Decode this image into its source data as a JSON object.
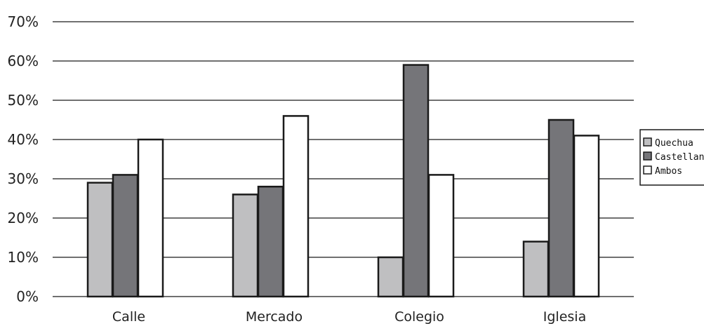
{
  "chart_data": {
    "type": "bar",
    "title": "",
    "xlabel": "",
    "ylabel": "",
    "categories": [
      "Calle",
      "Mercado",
      "Colegio",
      "Iglesia"
    ],
    "series": [
      {
        "name": "Quechua",
        "values": [
          29,
          26,
          10,
          14
        ],
        "color": "#bfbfc1"
      },
      {
        "name": "Castellano",
        "values": [
          31,
          28,
          59,
          45
        ],
        "color": "#757579"
      },
      {
        "name": "Ambos",
        "values": [
          40,
          46,
          31,
          41
        ],
        "color": "#ffffff"
      }
    ],
    "ylim": [
      0,
      70
    ],
    "yticks": [
      "0%",
      "10%",
      "20%",
      "30%",
      "40%",
      "50%",
      "60%",
      "70%"
    ],
    "grid": true,
    "legend": "right"
  }
}
